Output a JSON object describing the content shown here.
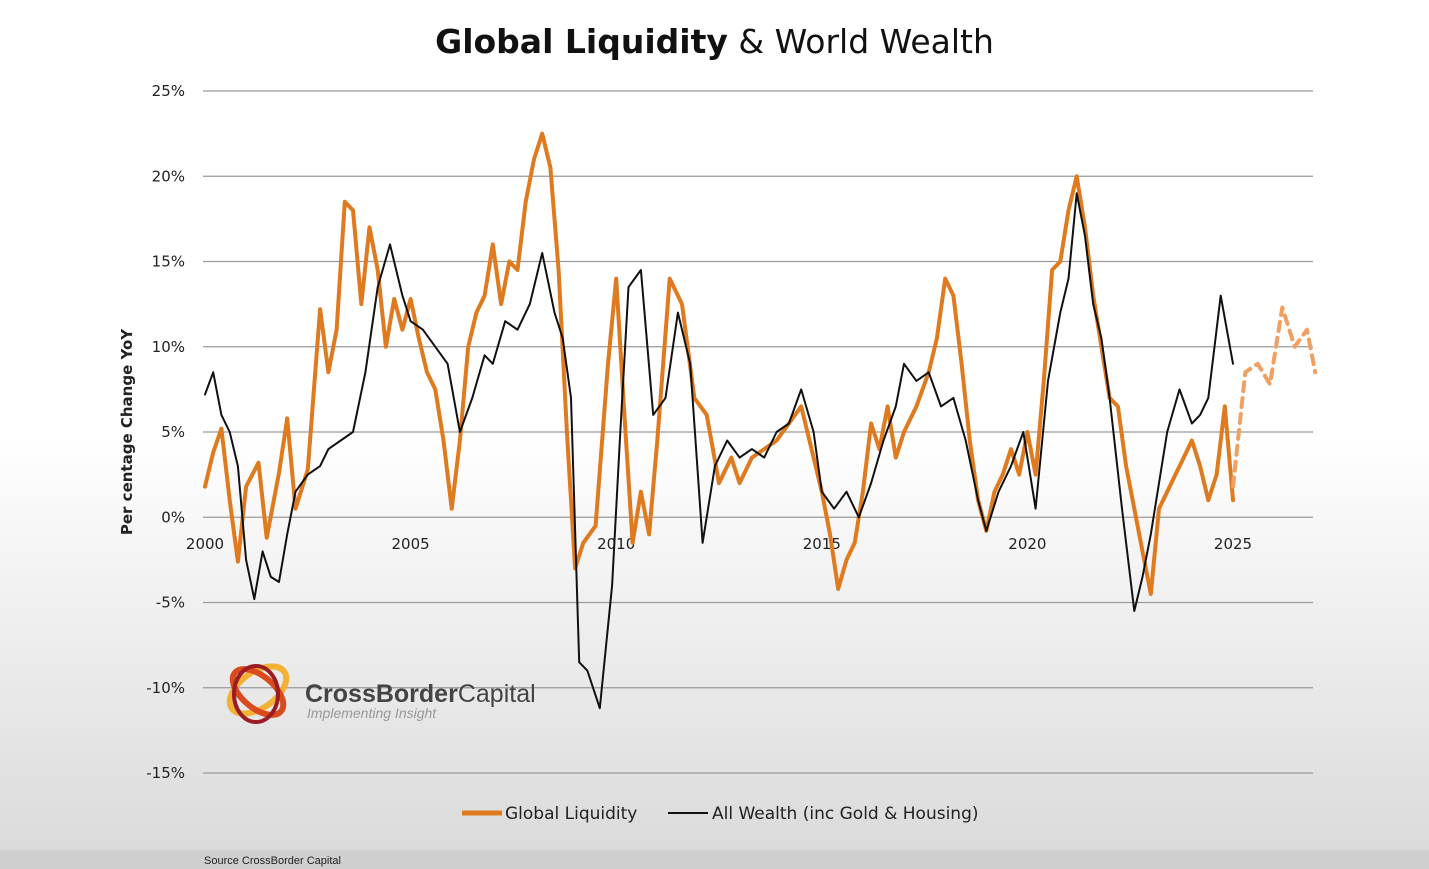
{
  "title": {
    "bold": "Global Liquidity",
    "rest": " & World Wealth"
  },
  "chart_data": {
    "type": "line",
    "title": "Global Liquidity & World Wealth",
    "xlabel": "",
    "ylabel": "Per centage Change YoY",
    "xlim": [
      2000,
      2027
    ],
    "ylim": [
      -15,
      25
    ],
    "grid": true,
    "x_ticks": [
      2000,
      2005,
      2010,
      2015,
      2020,
      2025
    ],
    "x_tick_labels": [
      "2000",
      "2005",
      "2010",
      "2015",
      "2020",
      "2025"
    ],
    "y_ticks": [
      25,
      20,
      15,
      10,
      5,
      0,
      -5,
      -10,
      -15
    ],
    "y_tick_labels": [
      "25%",
      "20%",
      "15%",
      "10%",
      "5%",
      "0%",
      "-5%",
      "-10%",
      "-15%"
    ],
    "legend_position": "bottom-center",
    "series": [
      {
        "name": "Global Liquidity",
        "color": "#e07a1f",
        "x": [
          2000.0,
          2000.2,
          2000.4,
          2000.6,
          2000.8,
          2001.0,
          2001.3,
          2001.5,
          2001.8,
          2002.0,
          2002.2,
          2002.5,
          2002.8,
          2003.0,
          2003.2,
          2003.4,
          2003.6,
          2003.8,
          2004.0,
          2004.2,
          2004.4,
          2004.6,
          2004.8,
          2005.0,
          2005.2,
          2005.4,
          2005.6,
          2005.8,
          2006.0,
          2006.2,
          2006.4,
          2006.6,
          2006.8,
          2007.0,
          2007.2,
          2007.4,
          2007.6,
          2007.8,
          2008.0,
          2008.2,
          2008.4,
          2008.6,
          2008.8,
          2009.0,
          2009.2,
          2009.5,
          2009.8,
          2010.0,
          2010.2,
          2010.4,
          2010.6,
          2010.8,
          2011.0,
          2011.3,
          2011.6,
          2011.9,
          2012.2,
          2012.5,
          2012.8,
          2013.0,
          2013.3,
          2013.6,
          2013.9,
          2014.2,
          2014.5,
          2014.8,
          2015.0,
          2015.2,
          2015.4,
          2015.6,
          2015.8,
          2016.0,
          2016.2,
          2016.4,
          2016.6,
          2016.8,
          2017.0,
          2017.3,
          2017.6,
          2017.8,
          2018.0,
          2018.2,
          2018.4,
          2018.6,
          2018.8,
          2019.0,
          2019.2,
          2019.4,
          2019.6,
          2019.8,
          2020.0,
          2020.2,
          2020.4,
          2020.6,
          2020.8,
          2021.0,
          2021.2,
          2021.4,
          2021.6,
          2021.8,
          2022.0,
          2022.2,
          2022.4,
          2022.6,
          2022.8,
          2023.0,
          2023.2,
          2023.4,
          2023.6,
          2023.8,
          2024.0,
          2024.2,
          2024.4,
          2024.6,
          2024.8,
          2025.0
        ],
        "values": [
          1.8,
          3.8,
          5.2,
          1.0,
          -2.6,
          1.8,
          3.2,
          -1.2,
          2.6,
          5.8,
          0.5,
          2.8,
          12.2,
          8.5,
          11.0,
          18.5,
          18.0,
          12.5,
          17.0,
          14.5,
          10.0,
          12.8,
          11.0,
          12.8,
          10.5,
          8.5,
          7.5,
          4.5,
          0.5,
          4.5,
          10.0,
          12.0,
          13.0,
          16.0,
          12.5,
          15.0,
          14.5,
          18.5,
          21.0,
          22.5,
          20.5,
          14.5,
          5.0,
          -3.0,
          -1.5,
          -0.5,
          9.0,
          14.0,
          6.0,
          -1.5,
          1.5,
          -1.0,
          4.5,
          14.0,
          12.5,
          7.0,
          6.0,
          2.0,
          3.5,
          2.0,
          3.5,
          4.0,
          4.5,
          5.5,
          6.5,
          3.5,
          1.5,
          -1.0,
          -4.2,
          -2.5,
          -1.5,
          1.5,
          5.5,
          4.0,
          6.5,
          3.5,
          5.0,
          6.5,
          8.5,
          10.5,
          14.0,
          13.0,
          9.0,
          4.5,
          1.0,
          -0.8,
          1.5,
          2.5,
          4.0,
          2.5,
          5.0,
          2.5,
          8.0,
          14.5,
          15.0,
          18.0,
          20.0,
          17.0,
          13.0,
          10.0,
          7.0,
          6.5,
          3.0,
          0.5,
          -2.0,
          -4.5,
          0.5,
          1.5,
          2.5,
          3.5,
          4.5,
          3.0,
          1.0,
          2.5,
          6.5,
          1.0
        ]
      },
      {
        "name": "Global Liquidity (forecast)",
        "color": "#f0a060",
        "dashed": true,
        "x": [
          2025.0,
          2025.3,
          2025.6,
          2025.9,
          2026.2,
          2026.5,
          2026.8,
          2027.0
        ],
        "values": [
          1.8,
          8.5,
          9.0,
          7.8,
          12.3,
          10.0,
          11.0,
          8.5
        ]
      },
      {
        "name": "All Wealth (inc Gold & Housing)",
        "color": "#111111",
        "x": [
          2000.0,
          2000.2,
          2000.4,
          2000.6,
          2000.8,
          2001.0,
          2001.2,
          2001.4,
          2001.6,
          2001.8,
          2002.0,
          2002.2,
          2002.5,
          2002.8,
          2003.0,
          2003.3,
          2003.6,
          2003.9,
          2004.2,
          2004.5,
          2004.8,
          2005.0,
          2005.3,
          2005.6,
          2005.9,
          2006.2,
          2006.5,
          2006.8,
          2007.0,
          2007.3,
          2007.6,
          2007.9,
          2008.2,
          2008.5,
          2008.7,
          2008.9,
          2009.1,
          2009.3,
          2009.6,
          2009.9,
          2010.1,
          2010.3,
          2010.6,
          2010.9,
          2011.2,
          2011.5,
          2011.8,
          2012.1,
          2012.4,
          2012.7,
          2013.0,
          2013.3,
          2013.6,
          2013.9,
          2014.2,
          2014.5,
          2014.8,
          2015.0,
          2015.3,
          2015.6,
          2015.9,
          2016.2,
          2016.5,
          2016.8,
          2017.0,
          2017.3,
          2017.6,
          2017.9,
          2018.2,
          2018.5,
          2018.8,
          2019.0,
          2019.3,
          2019.6,
          2019.9,
          2020.2,
          2020.5,
          2020.8,
          2021.0,
          2021.2,
          2021.4,
          2021.6,
          2021.8,
          2022.0,
          2022.3,
          2022.6,
          2022.8,
          2023.0,
          2023.2,
          2023.4,
          2023.7,
          2024.0,
          2024.2,
          2024.4,
          2024.7,
          2025.0
        ],
        "values": [
          7.2,
          8.5,
          6.0,
          5.0,
          3.0,
          -2.5,
          -4.8,
          -2.0,
          -3.5,
          -3.8,
          -1.0,
          1.5,
          2.5,
          3.0,
          4.0,
          4.5,
          5.0,
          8.5,
          13.5,
          16.0,
          13.0,
          11.5,
          11.0,
          10.0,
          9.0,
          5.0,
          7.0,
          9.5,
          9.0,
          11.5,
          11.0,
          12.5,
          15.5,
          12.0,
          10.5,
          7.0,
          -8.5,
          -9.0,
          -11.2,
          -4.0,
          5.0,
          13.5,
          14.5,
          6.0,
          7.0,
          12.0,
          9.0,
          -1.5,
          3.0,
          4.5,
          3.5,
          4.0,
          3.5,
          5.0,
          5.5,
          7.5,
          5.0,
          1.5,
          0.5,
          1.5,
          0.0,
          2.0,
          4.5,
          6.5,
          9.0,
          8.0,
          8.5,
          6.5,
          7.0,
          4.5,
          1.0,
          -0.8,
          1.5,
          3.0,
          5.0,
          0.5,
          8.0,
          12.0,
          14.0,
          19.0,
          16.5,
          12.5,
          10.5,
          7.0,
          0.5,
          -5.5,
          -3.5,
          -1.0,
          2.0,
          5.0,
          7.5,
          5.5,
          6.0,
          7.0,
          13.0,
          9.0
        ]
      }
    ],
    "legend": [
      {
        "label": "Global Liquidity",
        "color": "#e07a1f"
      },
      {
        "label": "All Wealth (inc Gold & Housing)",
        "color": "#111111"
      }
    ]
  },
  "logo": {
    "name_bold": "CrossBorder",
    "name_light": "Capital",
    "tagline": "Implementing Insight"
  },
  "source": "Source CrossBorder Capital"
}
